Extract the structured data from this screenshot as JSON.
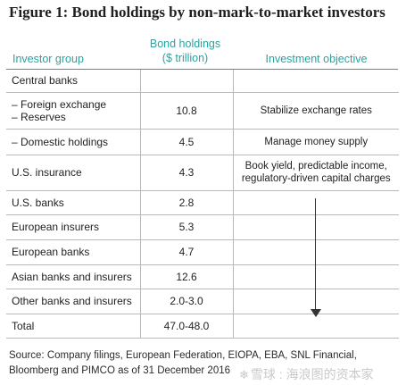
{
  "title": "Figure 1: Bond holdings by non-mark-to-market investors",
  "headers": {
    "group": "Investor group",
    "holdings_line1": "Bond holdings",
    "holdings_line2": "($ trillion)",
    "objective": "Investment objective"
  },
  "rows": {
    "central_banks": {
      "group": "Central banks",
      "value": "",
      "objective": ""
    },
    "fx_reserves": {
      "group_line1": "– Foreign exchange",
      "group_line2": "– Reserves",
      "value": "10.8",
      "objective": "Stabilize exchange rates"
    },
    "domestic": {
      "group": "– Domestic holdings",
      "value": "4.5",
      "objective": "Manage money supply"
    },
    "us_insurance": {
      "group": "U.S. insurance",
      "value": "4.3",
      "objective_line1": "Book yield, predictable income,",
      "objective_line2": "regulatory-driven capital charges"
    },
    "us_banks": {
      "group": "U.S. banks",
      "value": "2.8"
    },
    "eu_insurers": {
      "group": "European insurers",
      "value": "5.3"
    },
    "eu_banks": {
      "group": "European banks",
      "value": "4.7"
    },
    "asian": {
      "group": "Asian banks and insurers",
      "value": "12.6"
    },
    "other": {
      "group": "Other banks and insurers",
      "value": "2.0-3.0"
    },
    "total": {
      "group": "Total",
      "value": "47.0-48.0"
    }
  },
  "source": "Source: Company filings, European Federation, EIOPA, EBA, SNL Financial, Bloomberg and PIMCO as of 31 December 2016",
  "watermark": "雪球 : 海浪图的资本家",
  "icons": {
    "arrow": "down-arrow-icon",
    "watermark_logo": "snowball-logo-icon"
  },
  "colors": {
    "header_teal": "#2aa3a0",
    "grid": "#b9b9b9"
  }
}
